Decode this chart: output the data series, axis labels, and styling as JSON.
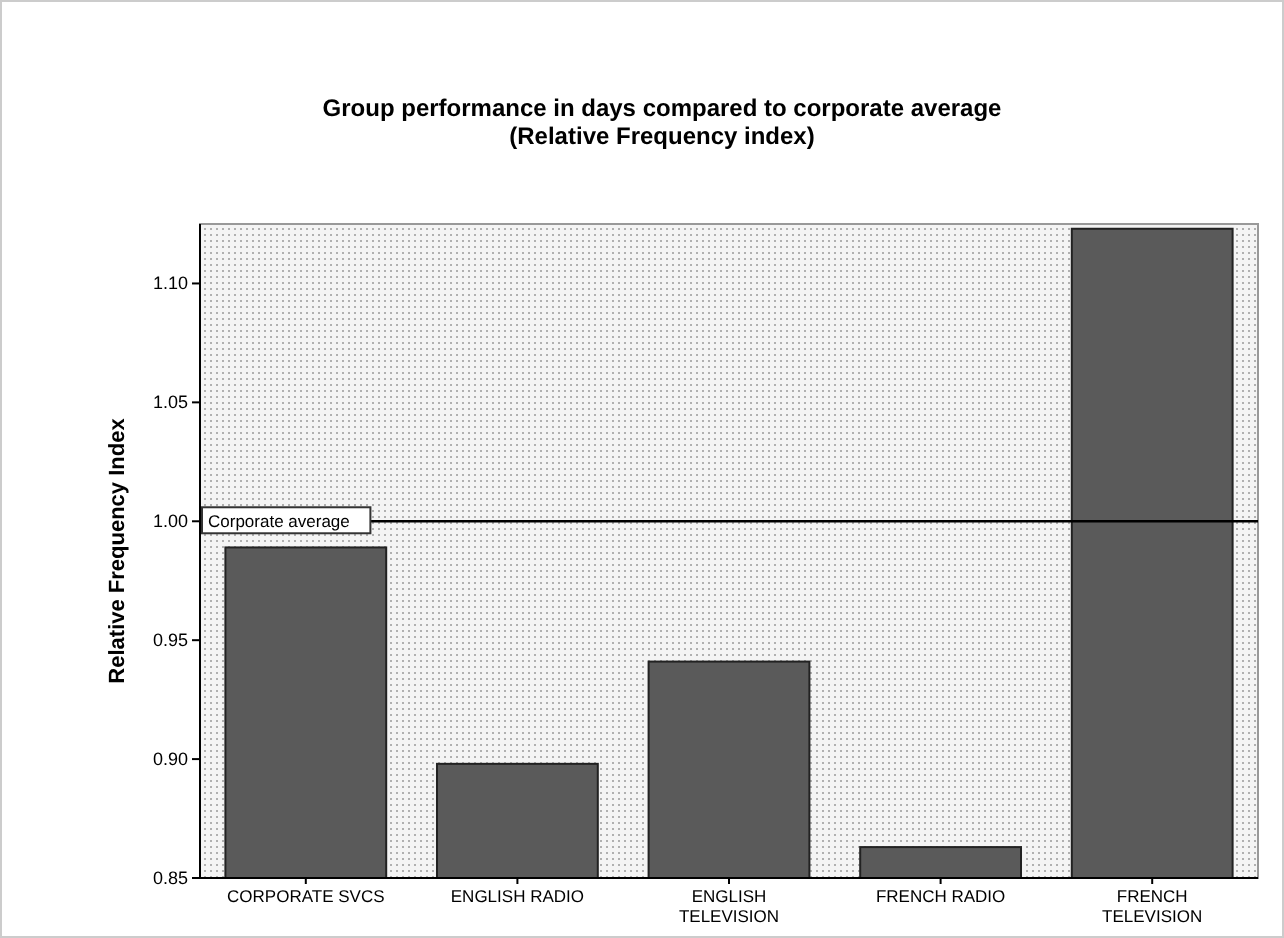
{
  "chart_data": {
    "type": "bar",
    "title": "Group performance in days compared to corporate average",
    "subtitle": "(Relative Frequency index)",
    "ylabel": "Relative Frequency Index",
    "categories": [
      "CORPORATE SVCS",
      "ENGLISH RADIO",
      "ENGLISH TELEVISION",
      "FRENCH RADIO",
      "FRENCH TELEVISION"
    ],
    "values": [
      0.989,
      0.898,
      0.941,
      0.863,
      1.123
    ],
    "color": "#5a5a5a",
    "ylim": [
      0.85,
      1.125
    ],
    "yticks": [
      {
        "value": 0.85,
        "label": "0.85"
      },
      {
        "value": 0.9,
        "label": "0.90"
      },
      {
        "value": 0.95,
        "label": "0.95"
      },
      {
        "value": 1.0,
        "label": "1.00"
      },
      {
        "value": 1.05,
        "label": "1.05"
      },
      {
        "value": 1.1,
        "label": "1.10"
      }
    ],
    "ref_lines": [
      {
        "axis": "y",
        "value": 1.0,
        "label": "Corporate average",
        "color": "#000000"
      }
    ],
    "grid": false
  }
}
